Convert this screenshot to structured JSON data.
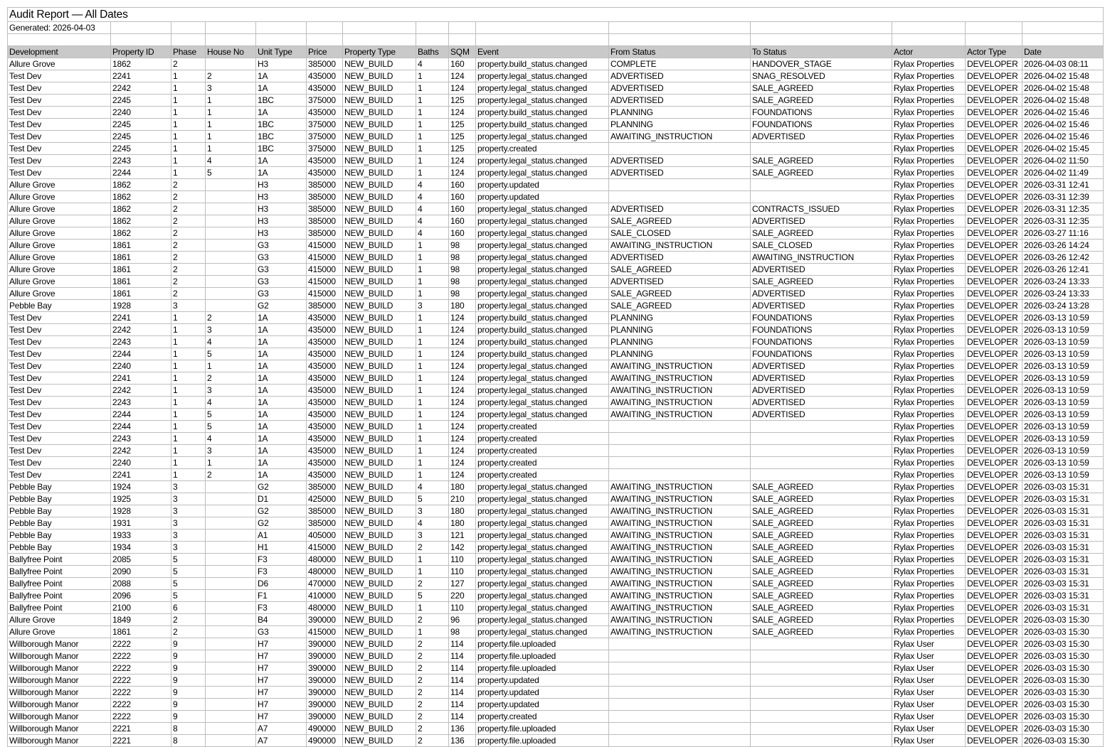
{
  "report": {
    "title": "Audit Report — All Dates",
    "generated": "Generated: 2026-04-03"
  },
  "header_color": "#c9c9c9",
  "columns": [
    "Development",
    "Property ID",
    "Phase",
    "House No",
    "Unit Type",
    "Price",
    "Property Type",
    "Baths",
    "SQM",
    "Event",
    "From Status",
    "To Status",
    "Actor",
    "Actor Type",
    "Date"
  ],
  "rows": [
    [
      "Allure Grove",
      "1862",
      "2",
      "",
      "H3",
      "385000",
      "NEW_BUILD",
      "4",
      "160",
      "property.build_status.changed",
      "COMPLETE",
      "HANDOVER_STAGE",
      "Rylax Properties",
      "DEVELOPER",
      "2026-04-03 08:11"
    ],
    [
      "Test Dev",
      "2241",
      "1",
      "2",
      "1A",
      "435000",
      "NEW_BUILD",
      "1",
      "124",
      "property.legal_status.changed",
      "ADVERTISED",
      "SNAG_RESOLVED",
      "Rylax Properties",
      "DEVELOPER",
      "2026-04-02 15:48"
    ],
    [
      "Test Dev",
      "2242",
      "1",
      "3",
      "1A",
      "435000",
      "NEW_BUILD",
      "1",
      "124",
      "property.legal_status.changed",
      "ADVERTISED",
      "SALE_AGREED",
      "Rylax Properties",
      "DEVELOPER",
      "2026-04-02 15:48"
    ],
    [
      "Test Dev",
      "2245",
      "1",
      "1",
      "1BC",
      "375000",
      "NEW_BUILD",
      "1",
      "125",
      "property.legal_status.changed",
      "ADVERTISED",
      "SALE_AGREED",
      "Rylax Properties",
      "DEVELOPER",
      "2026-04-02 15:48"
    ],
    [
      "Test Dev",
      "2240",
      "1",
      "1",
      "1A",
      "435000",
      "NEW_BUILD",
      "1",
      "124",
      "property.build_status.changed",
      "PLANNING",
      "FOUNDATIONS",
      "Rylax Properties",
      "DEVELOPER",
      "2026-04-02 15:46"
    ],
    [
      "Test Dev",
      "2245",
      "1",
      "1",
      "1BC",
      "375000",
      "NEW_BUILD",
      "1",
      "125",
      "property.build_status.changed",
      "PLANNING",
      "FOUNDATIONS",
      "Rylax Properties",
      "DEVELOPER",
      "2026-04-02 15:46"
    ],
    [
      "Test Dev",
      "2245",
      "1",
      "1",
      "1BC",
      "375000",
      "NEW_BUILD",
      "1",
      "125",
      "property.legal_status.changed",
      "AWAITING_INSTRUCTION",
      "ADVERTISED",
      "Rylax Properties",
      "DEVELOPER",
      "2026-04-02 15:46"
    ],
    [
      "Test Dev",
      "2245",
      "1",
      "1",
      "1BC",
      "375000",
      "NEW_BUILD",
      "1",
      "125",
      "property.created",
      "",
      "",
      "Rylax Properties",
      "DEVELOPER",
      "2026-04-02 15:45"
    ],
    [
      "Test Dev",
      "2243",
      "1",
      "4",
      "1A",
      "435000",
      "NEW_BUILD",
      "1",
      "124",
      "property.legal_status.changed",
      "ADVERTISED",
      "SALE_AGREED",
      "Rylax Properties",
      "DEVELOPER",
      "2026-04-02 11:50"
    ],
    [
      "Test Dev",
      "2244",
      "1",
      "5",
      "1A",
      "435000",
      "NEW_BUILD",
      "1",
      "124",
      "property.legal_status.changed",
      "ADVERTISED",
      "SALE_AGREED",
      "Rylax Properties",
      "DEVELOPER",
      "2026-04-02 11:49"
    ],
    [
      "Allure Grove",
      "1862",
      "2",
      "",
      "H3",
      "385000",
      "NEW_BUILD",
      "4",
      "160",
      "property.updated",
      "",
      "",
      "Rylax Properties",
      "DEVELOPER",
      "2026-03-31 12:41"
    ],
    [
      "Allure Grove",
      "1862",
      "2",
      "",
      "H3",
      "385000",
      "NEW_BUILD",
      "4",
      "160",
      "property.updated",
      "",
      "",
      "Rylax Properties",
      "DEVELOPER",
      "2026-03-31 12:39"
    ],
    [
      "Allure Grove",
      "1862",
      "2",
      "",
      "H3",
      "385000",
      "NEW_BUILD",
      "4",
      "160",
      "property.legal_status.changed",
      "ADVERTISED",
      "CONTRACTS_ISSUED",
      "Rylax Properties",
      "DEVELOPER",
      "2026-03-31 12:35"
    ],
    [
      "Allure Grove",
      "1862",
      "2",
      "",
      "H3",
      "385000",
      "NEW_BUILD",
      "4",
      "160",
      "property.legal_status.changed",
      "SALE_AGREED",
      "ADVERTISED",
      "Rylax Properties",
      "DEVELOPER",
      "2026-03-31 12:35"
    ],
    [
      "Allure Grove",
      "1862",
      "2",
      "",
      "H3",
      "385000",
      "NEW_BUILD",
      "4",
      "160",
      "property.legal_status.changed",
      "SALE_CLOSED",
      "SALE_AGREED",
      "Rylax Properties",
      "DEVELOPER",
      "2026-03-27 11:16"
    ],
    [
      "Allure Grove",
      "1861",
      "2",
      "",
      "G3",
      "415000",
      "NEW_BUILD",
      "1",
      "98",
      "property.legal_status.changed",
      "AWAITING_INSTRUCTION",
      "SALE_CLOSED",
      "Rylax Properties",
      "DEVELOPER",
      "2026-03-26 14:24"
    ],
    [
      "Allure Grove",
      "1861",
      "2",
      "",
      "G3",
      "415000",
      "NEW_BUILD",
      "1",
      "98",
      "property.legal_status.changed",
      "ADVERTISED",
      "AWAITING_INSTRUCTION",
      "Rylax Properties",
      "DEVELOPER",
      "2026-03-26 12:42"
    ],
    [
      "Allure Grove",
      "1861",
      "2",
      "",
      "G3",
      "415000",
      "NEW_BUILD",
      "1",
      "98",
      "property.legal_status.changed",
      "SALE_AGREED",
      "ADVERTISED",
      "Rylax Properties",
      "DEVELOPER",
      "2026-03-26 12:41"
    ],
    [
      "Allure Grove",
      "1861",
      "2",
      "",
      "G3",
      "415000",
      "NEW_BUILD",
      "1",
      "98",
      "property.legal_status.changed",
      "ADVERTISED",
      "SALE_AGREED",
      "Rylax Properties",
      "DEVELOPER",
      "2026-03-24 13:33"
    ],
    [
      "Allure Grove",
      "1861",
      "2",
      "",
      "G3",
      "415000",
      "NEW_BUILD",
      "1",
      "98",
      "property.legal_status.changed",
      "SALE_AGREED",
      "ADVERTISED",
      "Rylax Properties",
      "DEVELOPER",
      "2026-03-24 13:33"
    ],
    [
      "Pebble Bay",
      "1928",
      "3",
      "",
      "G2",
      "385000",
      "NEW_BUILD",
      "3",
      "180",
      "property.legal_status.changed",
      "SALE_AGREED",
      "ADVERTISED",
      "Rylax Properties",
      "DEVELOPER",
      "2026-03-24 13:28"
    ],
    [
      "Test Dev",
      "2241",
      "1",
      "2",
      "1A",
      "435000",
      "NEW_BUILD",
      "1",
      "124",
      "property.build_status.changed",
      "PLANNING",
      "FOUNDATIONS",
      "Rylax Properties",
      "DEVELOPER",
      "2026-03-13 10:59"
    ],
    [
      "Test Dev",
      "2242",
      "1",
      "3",
      "1A",
      "435000",
      "NEW_BUILD",
      "1",
      "124",
      "property.build_status.changed",
      "PLANNING",
      "FOUNDATIONS",
      "Rylax Properties",
      "DEVELOPER",
      "2026-03-13 10:59"
    ],
    [
      "Test Dev",
      "2243",
      "1",
      "4",
      "1A",
      "435000",
      "NEW_BUILD",
      "1",
      "124",
      "property.build_status.changed",
      "PLANNING",
      "FOUNDATIONS",
      "Rylax Properties",
      "DEVELOPER",
      "2026-03-13 10:59"
    ],
    [
      "Test Dev",
      "2244",
      "1",
      "5",
      "1A",
      "435000",
      "NEW_BUILD",
      "1",
      "124",
      "property.build_status.changed",
      "PLANNING",
      "FOUNDATIONS",
      "Rylax Properties",
      "DEVELOPER",
      "2026-03-13 10:59"
    ],
    [
      "Test Dev",
      "2240",
      "1",
      "1",
      "1A",
      "435000",
      "NEW_BUILD",
      "1",
      "124",
      "property.legal_status.changed",
      "AWAITING_INSTRUCTION",
      "ADVERTISED",
      "Rylax Properties",
      "DEVELOPER",
      "2026-03-13 10:59"
    ],
    [
      "Test Dev",
      "2241",
      "1",
      "2",
      "1A",
      "435000",
      "NEW_BUILD",
      "1",
      "124",
      "property.legal_status.changed",
      "AWAITING_INSTRUCTION",
      "ADVERTISED",
      "Rylax Properties",
      "DEVELOPER",
      "2026-03-13 10:59"
    ],
    [
      "Test Dev",
      "2242",
      "1",
      "3",
      "1A",
      "435000",
      "NEW_BUILD",
      "1",
      "124",
      "property.legal_status.changed",
      "AWAITING_INSTRUCTION",
      "ADVERTISED",
      "Rylax Properties",
      "DEVELOPER",
      "2026-03-13 10:59"
    ],
    [
      "Test Dev",
      "2243",
      "1",
      "4",
      "1A",
      "435000",
      "NEW_BUILD",
      "1",
      "124",
      "property.legal_status.changed",
      "AWAITING_INSTRUCTION",
      "ADVERTISED",
      "Rylax Properties",
      "DEVELOPER",
      "2026-03-13 10:59"
    ],
    [
      "Test Dev",
      "2244",
      "1",
      "5",
      "1A",
      "435000",
      "NEW_BUILD",
      "1",
      "124",
      "property.legal_status.changed",
      "AWAITING_INSTRUCTION",
      "ADVERTISED",
      "Rylax Properties",
      "DEVELOPER",
      "2026-03-13 10:59"
    ],
    [
      "Test Dev",
      "2244",
      "1",
      "5",
      "1A",
      "435000",
      "NEW_BUILD",
      "1",
      "124",
      "property.created",
      "",
      "",
      "Rylax Properties",
      "DEVELOPER",
      "2026-03-13 10:59"
    ],
    [
      "Test Dev",
      "2243",
      "1",
      "4",
      "1A",
      "435000",
      "NEW_BUILD",
      "1",
      "124",
      "property.created",
      "",
      "",
      "Rylax Properties",
      "DEVELOPER",
      "2026-03-13 10:59"
    ],
    [
      "Test Dev",
      "2242",
      "1",
      "3",
      "1A",
      "435000",
      "NEW_BUILD",
      "1",
      "124",
      "property.created",
      "",
      "",
      "Rylax Properties",
      "DEVELOPER",
      "2026-03-13 10:59"
    ],
    [
      "Test Dev",
      "2240",
      "1",
      "1",
      "1A",
      "435000",
      "NEW_BUILD",
      "1",
      "124",
      "property.created",
      "",
      "",
      "Rylax Properties",
      "DEVELOPER",
      "2026-03-13 10:59"
    ],
    [
      "Test Dev",
      "2241",
      "1",
      "2",
      "1A",
      "435000",
      "NEW_BUILD",
      "1",
      "124",
      "property.created",
      "",
      "",
      "Rylax Properties",
      "DEVELOPER",
      "2026-03-13 10:59"
    ],
    [
      "Pebble Bay",
      "1924",
      "3",
      "",
      "G2",
      "385000",
      "NEW_BUILD",
      "4",
      "180",
      "property.legal_status.changed",
      "AWAITING_INSTRUCTION",
      "SALE_AGREED",
      "Rylax Properties",
      "DEVELOPER",
      "2026-03-03 15:31"
    ],
    [
      "Pebble Bay",
      "1925",
      "3",
      "",
      "D1",
      "425000",
      "NEW_BUILD",
      "5",
      "210",
      "property.legal_status.changed",
      "AWAITING_INSTRUCTION",
      "SALE_AGREED",
      "Rylax Properties",
      "DEVELOPER",
      "2026-03-03 15:31"
    ],
    [
      "Pebble Bay",
      "1928",
      "3",
      "",
      "G2",
      "385000",
      "NEW_BUILD",
      "3",
      "180",
      "property.legal_status.changed",
      "AWAITING_INSTRUCTION",
      "SALE_AGREED",
      "Rylax Properties",
      "DEVELOPER",
      "2026-03-03 15:31"
    ],
    [
      "Pebble Bay",
      "1931",
      "3",
      "",
      "G2",
      "385000",
      "NEW_BUILD",
      "4",
      "180",
      "property.legal_status.changed",
      "AWAITING_INSTRUCTION",
      "SALE_AGREED",
      "Rylax Properties",
      "DEVELOPER",
      "2026-03-03 15:31"
    ],
    [
      "Pebble Bay",
      "1933",
      "3",
      "",
      "A1",
      "405000",
      "NEW_BUILD",
      "3",
      "121",
      "property.legal_status.changed",
      "AWAITING_INSTRUCTION",
      "SALE_AGREED",
      "Rylax Properties",
      "DEVELOPER",
      "2026-03-03 15:31"
    ],
    [
      "Pebble Bay",
      "1934",
      "3",
      "",
      "H1",
      "415000",
      "NEW_BUILD",
      "2",
      "142",
      "property.legal_status.changed",
      "AWAITING_INSTRUCTION",
      "SALE_AGREED",
      "Rylax Properties",
      "DEVELOPER",
      "2026-03-03 15:31"
    ],
    [
      "Ballyfree Point",
      "2085",
      "5",
      "",
      "F3",
      "480000",
      "NEW_BUILD",
      "1",
      "110",
      "property.legal_status.changed",
      "AWAITING_INSTRUCTION",
      "SALE_AGREED",
      "Rylax Properties",
      "DEVELOPER",
      "2026-03-03 15:31"
    ],
    [
      "Ballyfree Point",
      "2090",
      "5",
      "",
      "F3",
      "480000",
      "NEW_BUILD",
      "1",
      "110",
      "property.legal_status.changed",
      "AWAITING_INSTRUCTION",
      "SALE_AGREED",
      "Rylax Properties",
      "DEVELOPER",
      "2026-03-03 15:31"
    ],
    [
      "Ballyfree Point",
      "2088",
      "5",
      "",
      "D6",
      "470000",
      "NEW_BUILD",
      "2",
      "127",
      "property.legal_status.changed",
      "AWAITING_INSTRUCTION",
      "SALE_AGREED",
      "Rylax Properties",
      "DEVELOPER",
      "2026-03-03 15:31"
    ],
    [
      "Ballyfree Point",
      "2096",
      "5",
      "",
      "F1",
      "410000",
      "NEW_BUILD",
      "5",
      "220",
      "property.legal_status.changed",
      "AWAITING_INSTRUCTION",
      "SALE_AGREED",
      "Rylax Properties",
      "DEVELOPER",
      "2026-03-03 15:31"
    ],
    [
      "Ballyfree Point",
      "2100",
      "6",
      "",
      "F3",
      "480000",
      "NEW_BUILD",
      "1",
      "110",
      "property.legal_status.changed",
      "AWAITING_INSTRUCTION",
      "SALE_AGREED",
      "Rylax Properties",
      "DEVELOPER",
      "2026-03-03 15:31"
    ],
    [
      "Allure Grove",
      "1849",
      "2",
      "",
      "B4",
      "390000",
      "NEW_BUILD",
      "2",
      "96",
      "property.legal_status.changed",
      "AWAITING_INSTRUCTION",
      "SALE_AGREED",
      "Rylax Properties",
      "DEVELOPER",
      "2026-03-03 15:30"
    ],
    [
      "Allure Grove",
      "1861",
      "2",
      "",
      "G3",
      "415000",
      "NEW_BUILD",
      "1",
      "98",
      "property.legal_status.changed",
      "AWAITING_INSTRUCTION",
      "SALE_AGREED",
      "Rylax Properties",
      "DEVELOPER",
      "2026-03-03 15:30"
    ],
    [
      "Willborough Manor",
      "2222",
      "9",
      "",
      "H7",
      "390000",
      "NEW_BUILD",
      "2",
      "114",
      "property.file.uploaded",
      "",
      "",
      "Rylax User",
      "DEVELOPER",
      "2026-03-03 15:30"
    ],
    [
      "Willborough Manor",
      "2222",
      "9",
      "",
      "H7",
      "390000",
      "NEW_BUILD",
      "2",
      "114",
      "property.file.uploaded",
      "",
      "",
      "Rylax User",
      "DEVELOPER",
      "2026-03-03 15:30"
    ],
    [
      "Willborough Manor",
      "2222",
      "9",
      "",
      "H7",
      "390000",
      "NEW_BUILD",
      "2",
      "114",
      "property.file.uploaded",
      "",
      "",
      "Rylax User",
      "DEVELOPER",
      "2026-03-03 15:30"
    ],
    [
      "Willborough Manor",
      "2222",
      "9",
      "",
      "H7",
      "390000",
      "NEW_BUILD",
      "2",
      "114",
      "property.updated",
      "",
      "",
      "Rylax User",
      "DEVELOPER",
      "2026-03-03 15:30"
    ],
    [
      "Willborough Manor",
      "2222",
      "9",
      "",
      "H7",
      "390000",
      "NEW_BUILD",
      "2",
      "114",
      "property.updated",
      "",
      "",
      "Rylax User",
      "DEVELOPER",
      "2026-03-03 15:30"
    ],
    [
      "Willborough Manor",
      "2222",
      "9",
      "",
      "H7",
      "390000",
      "NEW_BUILD",
      "2",
      "114",
      "property.updated",
      "",
      "",
      "Rylax User",
      "DEVELOPER",
      "2026-03-03 15:30"
    ],
    [
      "Willborough Manor",
      "2222",
      "9",
      "",
      "H7",
      "390000",
      "NEW_BUILD",
      "2",
      "114",
      "property.created",
      "",
      "",
      "Rylax User",
      "DEVELOPER",
      "2026-03-03 15:30"
    ],
    [
      "Willborough Manor",
      "2221",
      "8",
      "",
      "A7",
      "490000",
      "NEW_BUILD",
      "2",
      "136",
      "property.file.uploaded",
      "",
      "",
      "Rylax User",
      "DEVELOPER",
      "2026-03-03 15:30"
    ],
    [
      "Willborough Manor",
      "2221",
      "8",
      "",
      "A7",
      "490000",
      "NEW_BUILD",
      "2",
      "136",
      "property.file.uploaded",
      "",
      "",
      "Rylax User",
      "DEVELOPER",
      "2026-03-03 15:30"
    ]
  ]
}
